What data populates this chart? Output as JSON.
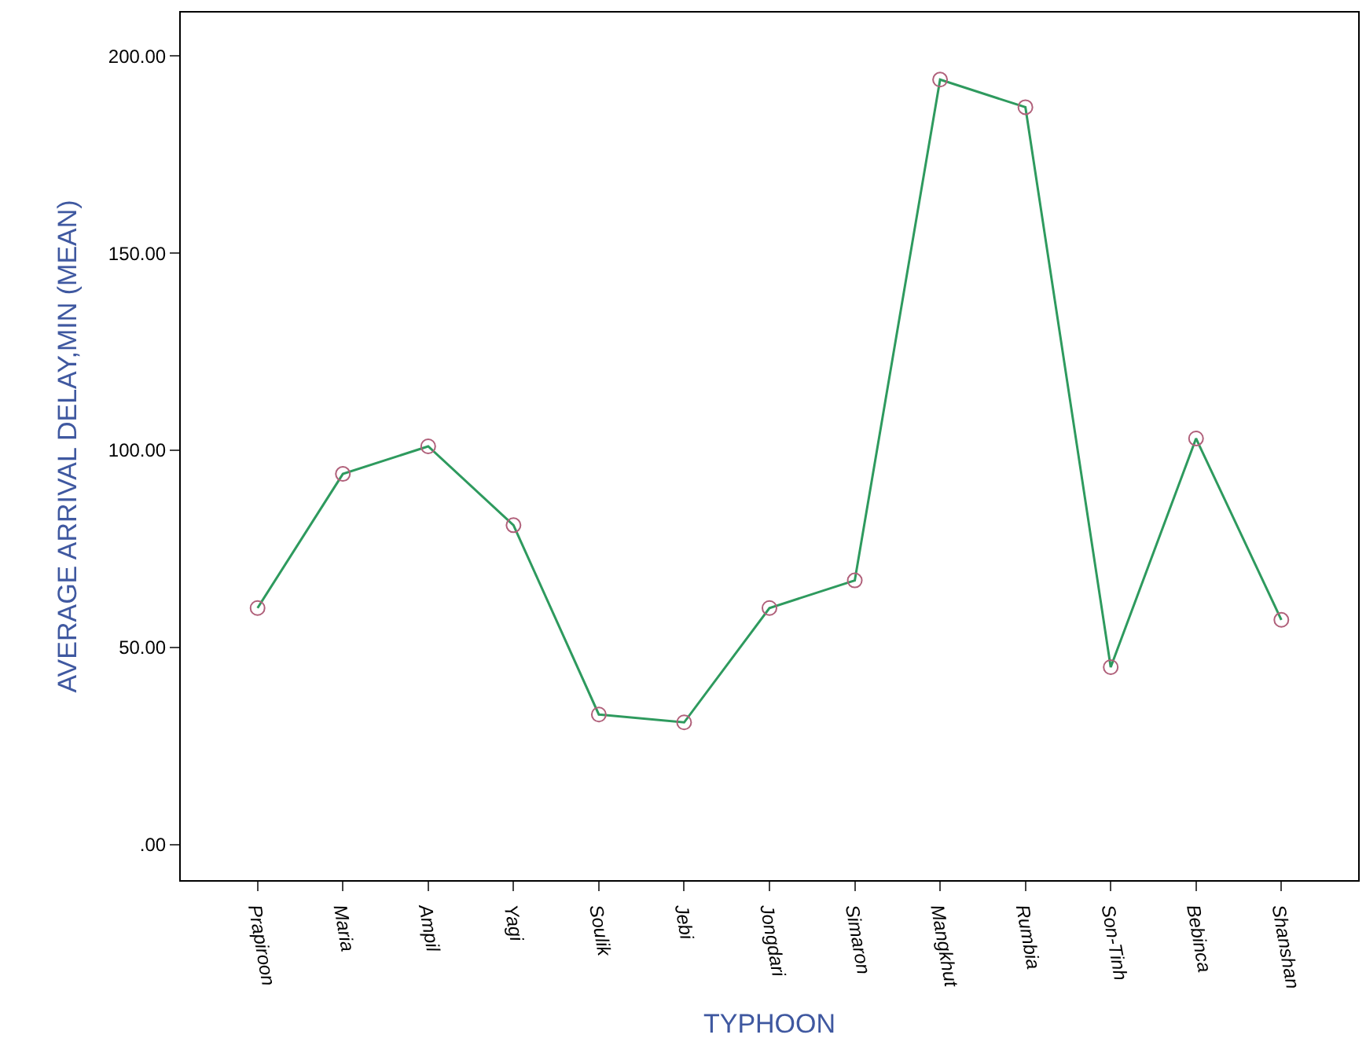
{
  "chart_data": {
    "type": "line",
    "xlabel": "TYPHOON",
    "ylabel": "AVERAGE ARRIVAL DELAY,MIN (MEAN)",
    "categories": [
      "Prapiroon",
      "Maria",
      "Ampil",
      "Yagi",
      "Soulik",
      "Jebi",
      "Jongdari",
      "Simaron",
      "Mangkhut",
      "Rumbia",
      "Son-Tinh",
      "Bebinca",
      "Shanshan"
    ],
    "series": [
      {
        "color": "#2e9a5e",
        "values": [
          60,
          94,
          101,
          81,
          33,
          31,
          60,
          67,
          194,
          187,
          45,
          103,
          57
        ]
      }
    ],
    "ylim": [
      -9,
      211
    ],
    "yticks": [
      {
        "value": 0,
        "label": ".00"
      },
      {
        "value": 50,
        "label": "50.00"
      },
      {
        "value": 100,
        "label": "100.00"
      },
      {
        "value": 150,
        "label": "150.00"
      },
      {
        "value": 200,
        "label": "200.00"
      }
    ],
    "marker": "circle",
    "legend": false
  }
}
